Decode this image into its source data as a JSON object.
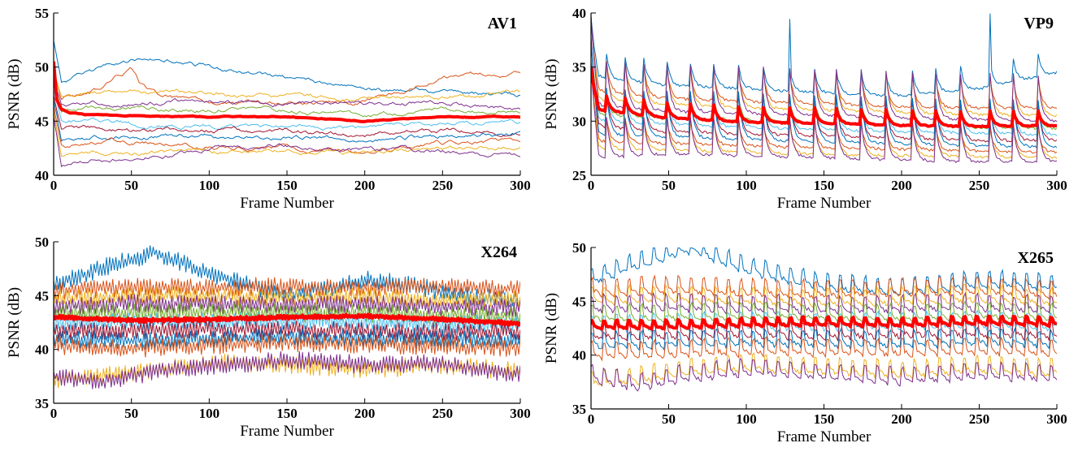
{
  "chart_data": [
    {
      "type": "line",
      "title": "AV1",
      "xlabel": "Frame Number",
      "ylabel": "PSNR (dB)",
      "xlim": [
        0,
        300
      ],
      "ylim": [
        40,
        55
      ],
      "xticks": [
        0,
        50,
        100,
        150,
        200,
        250,
        300
      ],
      "yticks": [
        40,
        45,
        50,
        55
      ],
      "grid": false,
      "legend": "none",
      "mean_color": "#ff0000",
      "series_colors": [
        "#0072bd",
        "#d95319",
        "#edb120",
        "#7e2f8e",
        "#77ac30",
        "#4dbeee",
        "#a2142f"
      ],
      "mean_series": {
        "x": [
          0,
          2,
          5,
          10,
          20,
          50,
          100,
          150,
          180,
          200,
          220,
          250,
          280,
          300
        ],
        "y": [
          50.5,
          47.0,
          46.1,
          45.8,
          45.6,
          45.5,
          45.4,
          45.4,
          45.2,
          45.0,
          45.2,
          45.4,
          45.4,
          45.4
        ]
      },
      "series": [
        {
          "x": [
            0,
            5,
            20,
            40,
            60,
            80,
            100,
            150,
            200,
            250,
            300
          ],
          "y": [
            52.5,
            48.6,
            49.3,
            50.3,
            50.9,
            50.5,
            50.0,
            49.0,
            48.0,
            47.6,
            47.3
          ]
        },
        {
          "x": [
            0,
            5,
            20,
            30,
            40,
            50,
            55,
            60,
            70,
            100,
            150,
            200,
            250,
            300
          ],
          "y": [
            50.0,
            47.2,
            47.5,
            48.0,
            49.5,
            50.0,
            48.5,
            48.0,
            47.0,
            46.7,
            46.5,
            46.7,
            49.0,
            49.6
          ]
        },
        {
          "x": [
            0,
            5,
            50,
            100,
            150,
            200,
            250,
            300
          ],
          "y": [
            49.5,
            47.4,
            47.7,
            47.5,
            47.3,
            47.1,
            47.2,
            47.5
          ]
        },
        {
          "x": [
            0,
            5,
            50,
            100,
            150,
            200,
            250,
            300
          ],
          "y": [
            49.0,
            46.6,
            46.9,
            46.8,
            46.7,
            46.5,
            46.8,
            46.3
          ]
        },
        {
          "x": [
            0,
            5,
            50,
            100,
            150,
            200,
            250,
            300
          ],
          "y": [
            48.5,
            46.0,
            46.2,
            46.1,
            46.0,
            45.7,
            46.0,
            45.8
          ]
        },
        {
          "x": [
            0,
            5,
            50,
            100,
            150,
            200,
            250,
            300
          ],
          "y": [
            48.0,
            45.0,
            44.7,
            44.6,
            44.5,
            44.2,
            44.7,
            44.8
          ]
        },
        {
          "x": [
            0,
            5,
            50,
            100,
            150,
            200,
            250,
            300
          ],
          "y": [
            47.5,
            44.4,
            44.2,
            44.3,
            44.0,
            43.8,
            44.0,
            44.1
          ]
        },
        {
          "x": [
            0,
            5,
            50,
            100,
            150,
            200,
            250,
            300
          ],
          "y": [
            47.0,
            43.4,
            43.7,
            43.5,
            43.6,
            43.3,
            43.7,
            43.8
          ]
        },
        {
          "x": [
            0,
            5,
            50,
            100,
            150,
            200,
            250,
            300
          ],
          "y": [
            46.5,
            42.8,
            43.0,
            42.7,
            42.6,
            42.3,
            42.9,
            43.0
          ]
        },
        {
          "x": [
            0,
            5,
            50,
            100,
            150,
            200,
            250,
            300
          ],
          "y": [
            46.0,
            41.8,
            42.0,
            42.1,
            42.3,
            42.0,
            42.4,
            42.6
          ]
        },
        {
          "x": [
            0,
            5,
            50,
            100,
            150,
            200,
            250,
            300
          ],
          "y": [
            45.5,
            41.1,
            41.6,
            42.3,
            42.6,
            42.4,
            42.3,
            41.9
          ]
        }
      ]
    },
    {
      "type": "line",
      "title": "VP9",
      "xlabel": "Frame Number",
      "ylabel": "PSNR (dB)",
      "xlim": [
        0,
        300
      ],
      "ylim": [
        25,
        40
      ],
      "xticks": [
        0,
        50,
        100,
        150,
        200,
        250,
        300
      ],
      "yticks": [
        25,
        30,
        35,
        40
      ],
      "grid": false,
      "legend": "none",
      "mean_color": "#ff0000",
      "series_colors": [
        "#0072bd",
        "#d95319",
        "#edb120",
        "#7e2f8e",
        "#77ac30",
        "#4dbeee",
        "#a2142f"
      ],
      "keyframe_spikes": [
        0,
        10,
        22,
        34,
        49,
        64,
        79,
        95,
        111,
        128,
        144,
        158,
        174,
        190,
        207,
        222,
        238,
        257,
        272,
        288
      ],
      "mean_series": {
        "x": [
          0,
          5,
          50,
          100,
          150,
          200,
          250,
          300
        ],
        "y": [
          33.5,
          31.0,
          30.3,
          29.9,
          29.8,
          29.6,
          29.5,
          29.6
        ]
      },
      "series": [
        {
          "x": [
            0,
            5,
            50,
            100,
            150,
            200,
            250,
            300
          ],
          "y": [
            37.5,
            34.0,
            33.3,
            33.0,
            32.6,
            32.3,
            33.0,
            34.5
          ]
        },
        {
          "x": [
            0,
            5,
            50,
            100,
            150,
            200,
            250,
            300
          ],
          "y": [
            36.5,
            32.7,
            32.1,
            31.8,
            31.6,
            31.3,
            31.2,
            31.2
          ]
        },
        {
          "x": [
            0,
            5,
            50,
            100,
            150,
            200,
            250,
            300
          ],
          "y": [
            36.0,
            31.9,
            31.5,
            31.2,
            31.0,
            30.8,
            30.6,
            30.5
          ]
        },
        {
          "x": [
            0,
            5,
            50,
            100,
            150,
            200,
            250,
            300
          ],
          "y": [
            35.5,
            31.3,
            30.9,
            30.7,
            30.5,
            30.3,
            30.1,
            30.0
          ]
        },
        {
          "x": [
            0,
            5,
            50,
            100,
            150,
            200,
            250,
            300
          ],
          "y": [
            35.0,
            30.6,
            30.2,
            30.0,
            29.8,
            29.6,
            29.4,
            29.3
          ]
        },
        {
          "x": [
            0,
            5,
            50,
            100,
            150,
            200,
            250,
            300
          ],
          "y": [
            34.5,
            30.0,
            29.7,
            29.4,
            29.2,
            29.0,
            28.9,
            28.7
          ]
        },
        {
          "x": [
            0,
            5,
            50,
            100,
            150,
            200,
            250,
            300
          ],
          "y": [
            34.0,
            29.4,
            29.0,
            28.8,
            28.6,
            28.4,
            28.2,
            28.2
          ]
        },
        {
          "x": [
            0,
            5,
            50,
            100,
            150,
            200,
            250,
            300
          ],
          "y": [
            33.5,
            28.7,
            28.5,
            28.3,
            28.1,
            27.9,
            27.7,
            27.6
          ]
        },
        {
          "x": [
            0,
            5,
            50,
            100,
            150,
            200,
            250,
            300
          ],
          "y": [
            33.0,
            28.1,
            27.9,
            27.7,
            27.5,
            27.4,
            27.2,
            27.1
          ]
        },
        {
          "x": [
            0,
            5,
            50,
            100,
            150,
            200,
            250,
            300
          ],
          "y": [
            32.5,
            27.4,
            27.3,
            27.1,
            26.9,
            26.8,
            26.7,
            26.6
          ]
        },
        {
          "x": [
            0,
            5,
            50,
            100,
            150,
            200,
            250,
            300
          ],
          "y": [
            32.0,
            26.6,
            26.9,
            26.8,
            26.6,
            26.4,
            26.2,
            26.3
          ]
        }
      ]
    },
    {
      "type": "line",
      "title": "X264",
      "xlabel": "Frame Number",
      "ylabel": "PSNR (dB)",
      "xlim": [
        0,
        300
      ],
      "ylim": [
        35,
        50
      ],
      "xticks": [
        0,
        50,
        100,
        150,
        200,
        250,
        300
      ],
      "yticks": [
        35,
        40,
        45,
        50
      ],
      "grid": false,
      "legend": "none",
      "mean_color": "#ff0000",
      "series_colors": [
        "#0072bd",
        "#d95319",
        "#edb120",
        "#7e2f8e",
        "#77ac30",
        "#4dbeee",
        "#a2142f"
      ],
      "mean_series": {
        "x": [
          0,
          50,
          100,
          150,
          200,
          250,
          300
        ],
        "y": [
          43.0,
          42.7,
          42.8,
          43.0,
          43.1,
          42.8,
          42.4
        ]
      },
      "series": [
        {
          "x": [
            0,
            30,
            65,
            100,
            150,
            200,
            230,
            260,
            300
          ],
          "y": [
            46.0,
            47.5,
            49.0,
            47.0,
            45.0,
            46.5,
            46.0,
            45.0,
            44.5
          ]
        },
        {
          "x": [
            0,
            50,
            100,
            150,
            200,
            250,
            300
          ],
          "y": [
            45.5,
            45.8,
            45.7,
            45.9,
            45.7,
            45.9,
            45.6
          ]
        },
        {
          "x": [
            0,
            50,
            100,
            150,
            200,
            250,
            300
          ],
          "y": [
            44.7,
            45.0,
            45.0,
            44.8,
            44.9,
            44.6,
            44.6
          ]
        },
        {
          "x": [
            0,
            50,
            100,
            150,
            200,
            250,
            300
          ],
          "y": [
            44.0,
            44.3,
            44.2,
            44.1,
            44.2,
            44.0,
            43.9
          ]
        },
        {
          "x": [
            0,
            50,
            100,
            150,
            200,
            250,
            300
          ],
          "y": [
            43.3,
            43.5,
            43.5,
            43.4,
            43.4,
            43.2,
            43.1
          ]
        },
        {
          "x": [
            0,
            50,
            100,
            150,
            200,
            250,
            300
          ],
          "y": [
            42.4,
            42.5,
            42.6,
            42.7,
            42.5,
            42.4,
            42.3
          ]
        },
        {
          "x": [
            0,
            50,
            100,
            150,
            200,
            250,
            300
          ],
          "y": [
            41.7,
            41.8,
            41.9,
            41.8,
            41.7,
            41.6,
            41.6
          ]
        },
        {
          "x": [
            0,
            50,
            100,
            150,
            200,
            250,
            300
          ],
          "y": [
            41.0,
            40.8,
            41.0,
            41.2,
            41.0,
            40.9,
            40.8
          ]
        },
        {
          "x": [
            0,
            50,
            100,
            150,
            200,
            250,
            300
          ],
          "y": [
            40.4,
            40.1,
            40.4,
            40.6,
            40.5,
            40.3,
            40.2
          ]
        },
        {
          "x": [
            0,
            30,
            60,
            100,
            150,
            200,
            250,
            300
          ],
          "y": [
            37.2,
            37.5,
            38.0,
            38.8,
            38.6,
            38.2,
            38.5,
            38.0
          ]
        },
        {
          "x": [
            0,
            30,
            60,
            100,
            150,
            200,
            250,
            300
          ],
          "y": [
            37.5,
            37.0,
            37.8,
            38.5,
            39.0,
            38.6,
            38.7,
            37.6
          ]
        }
      ]
    },
    {
      "type": "line",
      "title": "X265",
      "xlabel": "Frame Number",
      "ylabel": "PSNR (dB)",
      "xlim": [
        0,
        300
      ],
      "ylim": [
        35,
        50
      ],
      "xticks": [
        0,
        50,
        100,
        150,
        200,
        250,
        300
      ],
      "yticks": [
        35,
        40,
        45,
        50
      ],
      "grid": false,
      "legend": "none",
      "mean_color": "#ff0000",
      "series_colors": [
        "#0072bd",
        "#d95319",
        "#edb120",
        "#7e2f8e",
        "#77ac30",
        "#4dbeee",
        "#a2142f"
      ],
      "mean_series": {
        "x": [
          0,
          50,
          100,
          150,
          200,
          250,
          300
        ],
        "y": [
          43.0,
          43.0,
          43.2,
          43.3,
          43.2,
          43.4,
          43.3
        ]
      },
      "series": [
        {
          "x": [
            0,
            30,
            65,
            100,
            150,
            200,
            250,
            300
          ],
          "y": [
            47.0,
            48.5,
            50.0,
            48.0,
            46.5,
            46.0,
            46.8,
            46.5
          ]
        },
        {
          "x": [
            0,
            50,
            100,
            150,
            200,
            250,
            300
          ],
          "y": [
            46.0,
            46.2,
            46.0,
            45.8,
            46.0,
            46.2,
            45.8
          ]
        },
        {
          "x": [
            0,
            50,
            100,
            150,
            200,
            250,
            300
          ],
          "y": [
            45.3,
            45.4,
            45.2,
            45.1,
            45.2,
            45.4,
            45.1
          ]
        },
        {
          "x": [
            0,
            50,
            100,
            150,
            200,
            250,
            300
          ],
          "y": [
            44.5,
            44.6,
            44.5,
            44.4,
            44.5,
            44.6,
            44.4
          ]
        },
        {
          "x": [
            0,
            50,
            100,
            150,
            200,
            250,
            300
          ],
          "y": [
            43.6,
            43.7,
            43.8,
            43.7,
            43.7,
            43.9,
            43.7
          ]
        },
        {
          "x": [
            0,
            50,
            100,
            150,
            200,
            250,
            300
          ],
          "y": [
            42.7,
            42.8,
            42.9,
            42.8,
            42.9,
            43.0,
            42.8
          ]
        },
        {
          "x": [
            0,
            50,
            100,
            150,
            200,
            250,
            300
          ],
          "y": [
            41.9,
            42.0,
            42.1,
            42.0,
            42.1,
            42.2,
            42.0
          ]
        },
        {
          "x": [
            0,
            50,
            100,
            150,
            200,
            250,
            300
          ],
          "y": [
            41.1,
            41.2,
            41.3,
            41.3,
            41.2,
            41.4,
            41.2
          ]
        },
        {
          "x": [
            0,
            50,
            100,
            150,
            200,
            250,
            300
          ],
          "y": [
            40.2,
            40.3,
            40.5,
            40.5,
            40.4,
            40.6,
            40.4
          ]
        },
        {
          "x": [
            0,
            30,
            60,
            100,
            150,
            200,
            250,
            300
          ],
          "y": [
            37.5,
            37.8,
            38.5,
            39.0,
            38.7,
            38.4,
            38.8,
            38.5
          ]
        },
        {
          "x": [
            0,
            30,
            60,
            100,
            150,
            200,
            250,
            300
          ],
          "y": [
            38.0,
            37.2,
            38.0,
            38.6,
            38.2,
            37.8,
            38.3,
            38.0
          ]
        }
      ]
    }
  ]
}
